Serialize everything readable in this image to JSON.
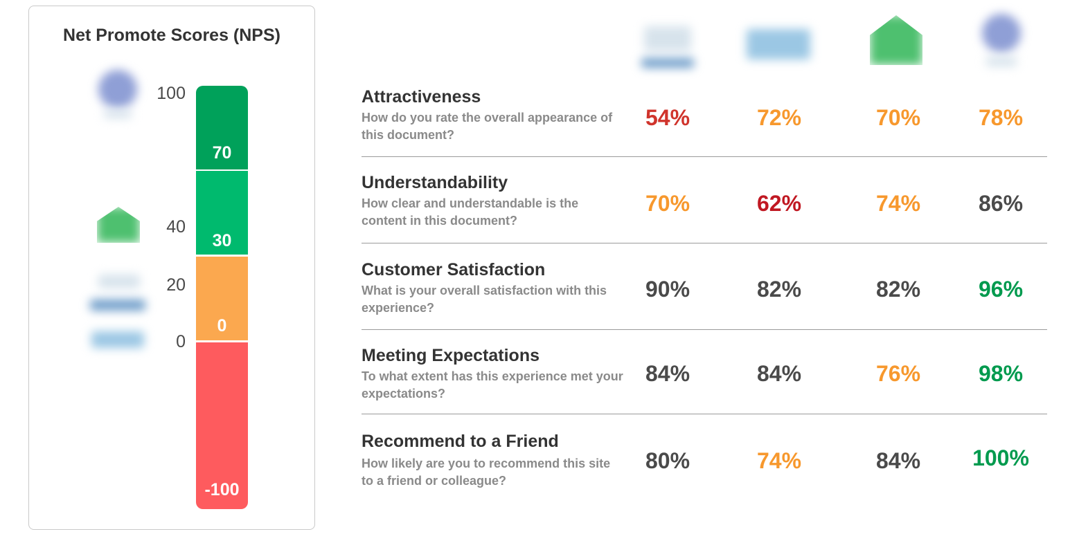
{
  "nps": {
    "title": "Net Promote Scores (NPS)",
    "scale_labels": [
      "100",
      "40",
      "20",
      "0"
    ],
    "segments": [
      {
        "label": "70",
        "color": "#00a15a"
      },
      {
        "label": "30",
        "color": "#00ba6e"
      },
      {
        "label": "0",
        "color": "#fba84f"
      },
      {
        "label": "-100",
        "color": "#fe5b5e"
      }
    ]
  },
  "metrics": {
    "rows": [
      {
        "title": "Attractiveness",
        "question": "How do you rate the overall appearance of this document?",
        "scores": [
          {
            "value": "54%",
            "color": "#d0342c"
          },
          {
            "value": "72%",
            "color": "#f7982d"
          },
          {
            "value": "70%",
            "color": "#f7982d"
          },
          {
            "value": "78%",
            "color": "#f7982d"
          }
        ]
      },
      {
        "title": "Understandability",
        "question": "How clear and understandable is the content in this document?",
        "scores": [
          {
            "value": "70%",
            "color": "#f7982d"
          },
          {
            "value": "62%",
            "color": "#c01822"
          },
          {
            "value": "74%",
            "color": "#f7982d"
          },
          {
            "value": "86%",
            "color": "#4a4a4a"
          }
        ]
      },
      {
        "title": "Customer Satisfaction",
        "question": "What is your overall satisfaction with this experience?",
        "scores": [
          {
            "value": "90%",
            "color": "#4a4a4a"
          },
          {
            "value": "82%",
            "color": "#4a4a4a"
          },
          {
            "value": "82%",
            "color": "#4a4a4a"
          },
          {
            "value": "96%",
            "color": "#009a4e"
          }
        ]
      },
      {
        "title": "Meeting Expectations",
        "question": "To what extent has this experience met your expectations?",
        "scores": [
          {
            "value": "84%",
            "color": "#4a4a4a"
          },
          {
            "value": "84%",
            "color": "#4a4a4a"
          },
          {
            "value": "76%",
            "color": "#f7982d"
          },
          {
            "value": "98%",
            "color": "#009a4e"
          }
        ]
      },
      {
        "title": "Recommend to a Friend",
        "question": "How likely are you to recommend this site to a friend or colleague?",
        "scores": [
          {
            "value": "80%",
            "color": "#4a4a4a"
          },
          {
            "value": "74%",
            "color": "#f7982d"
          },
          {
            "value": "84%",
            "color": "#4a4a4a"
          },
          {
            "value": "100%",
            "color": "#009a4e"
          }
        ]
      }
    ]
  }
}
